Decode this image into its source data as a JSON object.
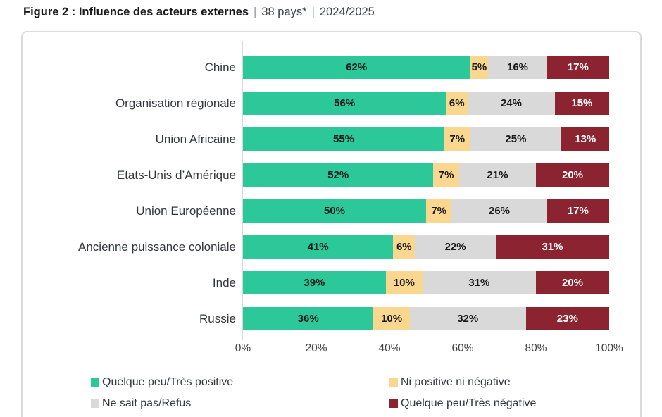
{
  "title": {
    "figure": "Figure 2 : Influence des acteurs externes",
    "pipe": "|",
    "countries": "38 pays*",
    "period": "2024/2025"
  },
  "chart_data": {
    "type": "bar",
    "orientation": "horizontal-stacked",
    "title": "Figure 2 : Influence des acteurs externes | 38 pays* | 2024/2025",
    "categories": [
      "Chine",
      "Organisation régionale",
      "Union Africaine",
      "Etats-Unis d’Amérique",
      "Union Européenne",
      "Ancienne puissance coloniale",
      "Inde",
      "Russie"
    ],
    "series": [
      {
        "name": "Quelque peu/Très positive",
        "color": "#2CC899",
        "label_color": "#1A1A1A",
        "values": [
          62,
          56,
          55,
          52,
          50,
          41,
          39,
          36
        ]
      },
      {
        "name": "Ni positive ni négative",
        "color": "#FAD78F",
        "label_color": "#1A1A1A",
        "values": [
          5,
          6,
          7,
          7,
          7,
          6,
          10,
          10
        ]
      },
      {
        "name": "Ne sait pas/Refus",
        "color": "#D9D9D9",
        "label_color": "#1A1A1A",
        "values": [
          16,
          24,
          25,
          21,
          26,
          22,
          31,
          32
        ]
      },
      {
        "name": "Quelque peu/Très négative",
        "color": "#8B2331",
        "label_color": "#FFFFFF",
        "values": [
          17,
          15,
          13,
          20,
          17,
          31,
          20,
          23
        ]
      }
    ],
    "value_suffix": "%",
    "x_ticks": [
      "0%",
      "20%",
      "40%",
      "60%",
      "80%",
      "100%"
    ],
    "xlim": [
      0,
      100
    ],
    "grid": false,
    "legend_position": "bottom"
  }
}
